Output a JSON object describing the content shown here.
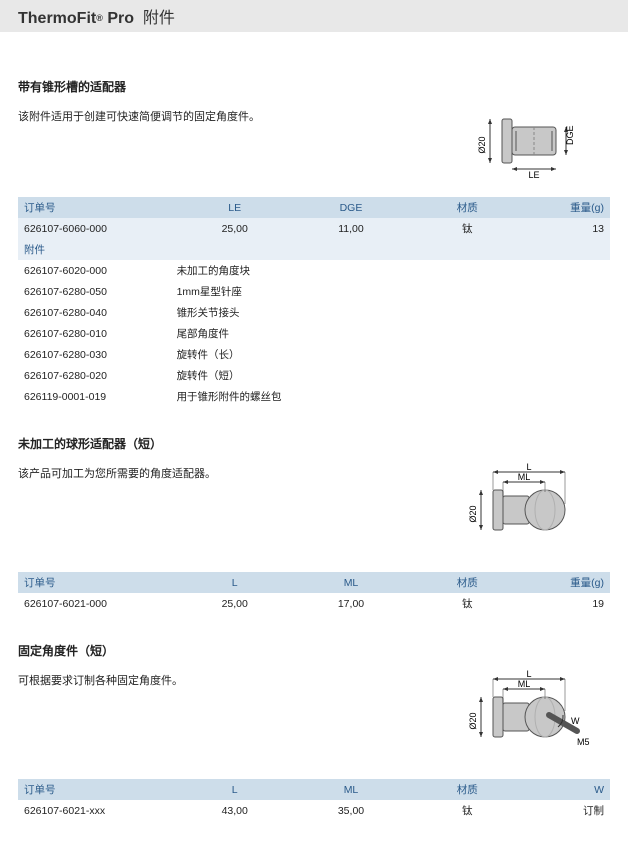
{
  "header": {
    "brand": "ThermoFit",
    "reg": "®",
    "model": "Pro",
    "suffix": "附件"
  },
  "sections": [
    {
      "title": "带有锥形槽的适配器",
      "desc": "该附件适用于创建可快速简便调节的固定角度件。",
      "diagram": "cone",
      "cols": [
        {
          "key": "order",
          "label": "订单号",
          "cls": "col-order"
        },
        {
          "key": "a",
          "label": "LE",
          "cls": "col-a center"
        },
        {
          "key": "b",
          "label": "DGE",
          "cls": "col-b center"
        },
        {
          "key": "c",
          "label": "材质",
          "cls": "col-c center"
        },
        {
          "key": "d",
          "label": "重量(g)",
          "cls": "col-d right"
        }
      ],
      "rows": [
        {
          "cls": "stripe",
          "cells": [
            "626107-6060-000",
            "25,00",
            "11,00",
            "钛",
            "13"
          ]
        }
      ],
      "subhead": "附件",
      "accessories": [
        [
          "626107-6020-000",
          "未加工的角度块"
        ],
        [
          "626107-6280-050",
          "1mm星型针座"
        ],
        [
          "626107-6280-040",
          "锥形关节接头"
        ],
        [
          "626107-6280-010",
          "尾部角度件"
        ],
        [
          "626107-6280-030",
          "旋转件（长）"
        ],
        [
          "626107-6280-020",
          "旋转件（短）"
        ],
        [
          "626119-0001-019",
          "用于锥形附件的螺丝包"
        ]
      ]
    },
    {
      "title": "未加工的球形适配器（短）",
      "desc": "该产品可加工为您所需要的角度适配器。",
      "diagram": "sphere",
      "cols": [
        {
          "key": "order",
          "label": "订单号",
          "cls": "col-order"
        },
        {
          "key": "a",
          "label": "L",
          "cls": "col-a center"
        },
        {
          "key": "b",
          "label": "ML",
          "cls": "col-b center"
        },
        {
          "key": "c",
          "label": "材质",
          "cls": "col-c center"
        },
        {
          "key": "d",
          "label": "重量(g)",
          "cls": "col-d right"
        }
      ],
      "rows": [
        {
          "cls": "",
          "cells": [
            "626107-6021-000",
            "25,00",
            "17,00",
            "钛",
            "19"
          ]
        }
      ]
    },
    {
      "title": "固定角度件（短）",
      "desc": "可根据要求订制各种固定角度件。",
      "diagram": "sphere-angle",
      "cols": [
        {
          "key": "order",
          "label": "订单号",
          "cls": "col-order"
        },
        {
          "key": "a",
          "label": "L",
          "cls": "col-a center"
        },
        {
          "key": "b",
          "label": "ML",
          "cls": "col-b center"
        },
        {
          "key": "c",
          "label": "材质",
          "cls": "col-c center"
        },
        {
          "key": "d",
          "label": "W",
          "cls": "col-d right"
        }
      ],
      "rows": [
        {
          "cls": "",
          "cells": [
            "626107-6021-xxx",
            "43,00",
            "35,00",
            "钛",
            "订制"
          ]
        }
      ]
    }
  ],
  "diagrams": {
    "labels": {
      "d20": "Ø20",
      "le": "LE",
      "dge": "DGE",
      "l": "L",
      "ml": "ML",
      "m5": "M5",
      "w": "W"
    },
    "colors": {
      "stroke": "#555",
      "fill": "#c8c8c8",
      "fill2": "#b0b0b0",
      "dim": "#333"
    }
  }
}
